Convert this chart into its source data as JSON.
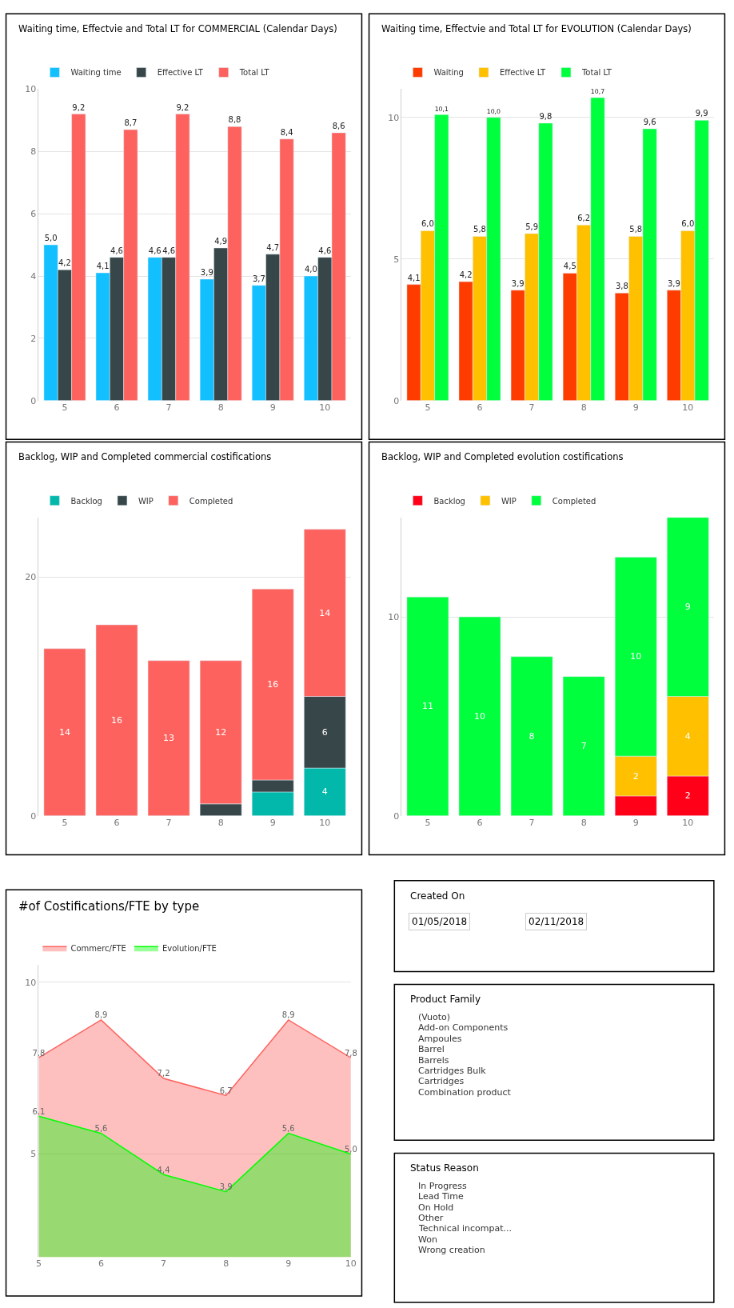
{
  "chart_data": [
    {
      "type": "bar",
      "title": "Waiting time, Effectvie and Total LT for COMMERCIAL (Calendar Days)",
      "categories": [
        "5",
        "6",
        "7",
        "8",
        "9",
        "10"
      ],
      "ylim": [
        0,
        10
      ],
      "yticks": [
        0,
        2,
        4,
        6,
        8,
        10
      ],
      "grid": "y",
      "legend": "top left",
      "series": [
        {
          "name": "Waiting time",
          "color": "#12bfff",
          "values": [
            5.0,
            4.1,
            4.6,
            3.9,
            3.7,
            4.0
          ],
          "value_labels": [
            "5,0",
            "4,1",
            "4,6",
            "3,9",
            "3,7",
            "4,0"
          ]
        },
        {
          "name": "Effective LT",
          "color": "#374649",
          "values": [
            4.2,
            4.6,
            4.6,
            4.9,
            4.7,
            4.6
          ],
          "value_labels": [
            "4,2",
            "4,6",
            "4,6",
            "4,9",
            "4,7",
            "4,6"
          ]
        },
        {
          "name": "Total LT",
          "color": "#fd625e",
          "values": [
            9.2,
            8.7,
            9.2,
            8.8,
            8.4,
            8.6
          ],
          "value_labels": [
            "9,2",
            "8,7",
            "9,2",
            "8,8",
            "8,4",
            "8,6"
          ]
        }
      ]
    },
    {
      "type": "bar",
      "title": "Waiting time, Effectvie and Total LT for EVOLUTION (Calendar Days)",
      "categories": [
        "5",
        "6",
        "7",
        "8",
        "9",
        "10"
      ],
      "ylim": [
        0,
        11
      ],
      "yticks": [
        0,
        5,
        10
      ],
      "grid": "y",
      "legend": "top left",
      "series": [
        {
          "name": "Waiting",
          "color": "#ff3c00",
          "values": [
            4.1,
            4.2,
            3.9,
            4.5,
            3.8,
            3.9
          ],
          "value_labels": [
            "4,1",
            "4,2",
            "3,9",
            "4,5",
            "3,8",
            "3,9"
          ]
        },
        {
          "name": "Effective LT",
          "color": "#ffc000",
          "values": [
            6.0,
            5.8,
            5.9,
            6.2,
            5.8,
            6.0
          ],
          "value_labels": [
            "6,0",
            "5,8",
            "5,9",
            "6,2",
            "5,8",
            "6,0"
          ]
        },
        {
          "name": "Total LT",
          "color": "#00ff3c",
          "values": [
            10.1,
            10.0,
            9.8,
            10.7,
            9.6,
            9.9
          ],
          "value_labels": [
            "10,1",
            "10,0",
            "9,8",
            "10,7",
            "9,6",
            "9,9"
          ]
        }
      ]
    },
    {
      "type": "bar",
      "stacked": true,
      "title": "Backlog, WIP and Completed commercial costifications",
      "categories": [
        "5",
        "6",
        "7",
        "8",
        "9",
        "10"
      ],
      "ylim": [
        0,
        25
      ],
      "yticks": [
        0,
        20
      ],
      "grid": "y",
      "legend": "top left",
      "series": [
        {
          "name": "Backlog",
          "color": "#01b8aa",
          "values": [
            0,
            0,
            0,
            0,
            2,
            4
          ],
          "value_labels": [
            null,
            null,
            null,
            null,
            null,
            "4"
          ]
        },
        {
          "name": "WIP",
          "color": "#374649",
          "values": [
            0,
            0,
            0,
            1,
            1,
            6
          ],
          "value_labels": [
            null,
            null,
            null,
            null,
            null,
            "6"
          ]
        },
        {
          "name": "Completed",
          "color": "#fd625e",
          "values": [
            14,
            16,
            13,
            12,
            16,
            14
          ],
          "value_labels": [
            "14",
            "16",
            "13",
            "12",
            "16",
            "14"
          ]
        }
      ]
    },
    {
      "type": "bar",
      "stacked": true,
      "title": "Backlog, WIP and Completed evolution costifications",
      "categories": [
        "5",
        "6",
        "7",
        "8",
        "9",
        "10"
      ],
      "ylim": [
        0,
        15
      ],
      "yticks": [
        0,
        10
      ],
      "grid": "y",
      "legend": "top left",
      "series": [
        {
          "name": "Backlog",
          "color": "#ff0018",
          "values": [
            0,
            0,
            0,
            0,
            1,
            2
          ],
          "value_labels": [
            null,
            null,
            null,
            null,
            null,
            "2"
          ]
        },
        {
          "name": "WIP",
          "color": "#ffc000",
          "values": [
            0,
            0,
            0,
            0,
            2,
            4
          ],
          "value_labels": [
            null,
            null,
            null,
            null,
            "2",
            "4"
          ]
        },
        {
          "name": "Completed",
          "color": "#00ff3c",
          "values": [
            11,
            10,
            8,
            7,
            10,
            9
          ],
          "value_labels": [
            "11",
            "10",
            "8",
            "7",
            "10",
            "9"
          ]
        }
      ]
    },
    {
      "type": "area",
      "title": "#of Costifications/FTE by type",
      "categories": [
        "5",
        "6",
        "7",
        "8",
        "9",
        "10"
      ],
      "ylim": [
        2,
        10.5
      ],
      "yticks": [
        5,
        10
      ],
      "grid": "y",
      "legend": "top left",
      "marker": "none",
      "series": [
        {
          "name": "Commerc/FTE",
          "color": "#fd625e",
          "values": [
            7.8,
            8.9,
            7.2,
            6.7,
            8.9,
            7.8
          ],
          "value_labels": [
            "7,8",
            "8,9",
            "7,2",
            "6,7",
            "8,9",
            "7,8"
          ]
        },
        {
          "name": "Evolution/FTE",
          "color": "#00ff00",
          "values": [
            6.1,
            5.6,
            4.4,
            3.9,
            5.6,
            5.0
          ],
          "value_labels": [
            "6,1",
            "5,6",
            "4,4",
            "3,9",
            "5,6",
            "5,0"
          ]
        }
      ]
    },
    {
      "type": "other",
      "title": "Created On",
      "annotations": [
        "01/05/2018",
        "02/11/2018"
      ]
    },
    {
      "type": "other",
      "title": "Product Family",
      "annotations": [
        "(Vuoto)",
        "Add-on Components",
        "Ampoules",
        "Barrel",
        "Barrels",
        "Cartridges Bulk",
        "Cartridges",
        "Combination product"
      ]
    },
    {
      "type": "other",
      "title": "Status Reason",
      "annotations": [
        "In Progress",
        "Lead Time",
        "On Hold",
        "Other",
        "Technical incompat...",
        "Won",
        "Wrong creation"
      ]
    }
  ]
}
